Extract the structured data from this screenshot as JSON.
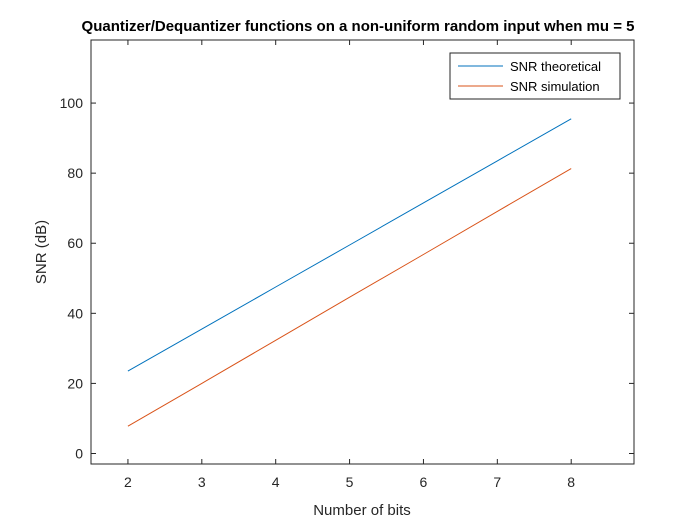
{
  "chart_data": {
    "type": "line",
    "title": "Quantizer/Dequantizer functions on a non-uniform random input when mu = 5",
    "xlabel": "Number of bits",
    "ylabel": "SNR (dB)",
    "xlim": [
      1.5,
      8.85
    ],
    "ylim": [
      -3,
      118
    ],
    "xticks": [
      2,
      3,
      4,
      5,
      6,
      7,
      8
    ],
    "yticks": [
      0,
      20,
      40,
      60,
      80,
      100
    ],
    "grid": false,
    "legend_position": "top-right",
    "series": [
      {
        "name": "SNR theoretical",
        "color": "#0072BD",
        "x": [
          2,
          3,
          4,
          5,
          6,
          7,
          8
        ],
        "values": [
          23.5,
          35.5,
          47.5,
          59.5,
          71.5,
          83.5,
          95.5
        ]
      },
      {
        "name": "SNR simulation",
        "color": "#D95319",
        "x": [
          2,
          3,
          4,
          5,
          6,
          7,
          8
        ],
        "values": [
          7.8,
          20.0,
          32.3,
          44.6,
          56.8,
          69.1,
          81.3
        ]
      }
    ]
  }
}
